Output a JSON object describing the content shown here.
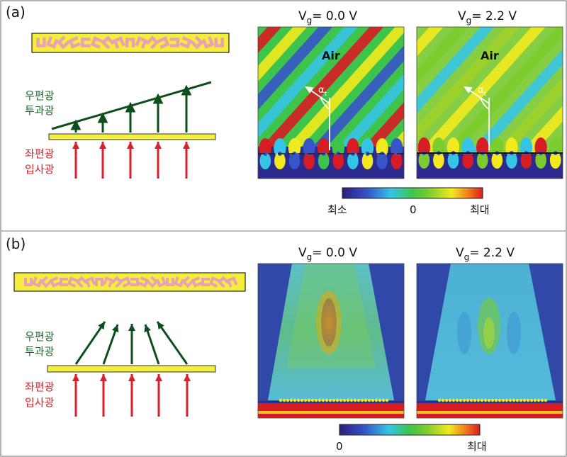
{
  "panels": [
    {
      "label": "(a)",
      "transmitted_label_line1": "우편광",
      "transmitted_label_line2": "투과광",
      "incident_label_line1": "좌편광",
      "incident_label_line2": "입사광",
      "maps": [
        {
          "title_prefix": "V",
          "title_sub": "g",
          "title_value": "= 0.0  V",
          "air_label": "Air",
          "angle_label": "α",
          "angle_sub": "t"
        },
        {
          "title_prefix": "V",
          "title_sub": "g",
          "title_value": "= 2.2  V",
          "air_label": "Air",
          "angle_label": "α",
          "angle_sub": "t"
        }
      ],
      "colorbar": {
        "min_label": "최소",
        "mid_label": "0",
        "max_label": "최대"
      }
    },
    {
      "label": "(b)",
      "transmitted_label_line1": "우편광",
      "transmitted_label_line2": "투과광",
      "incident_label_line1": "좌편광",
      "incident_label_line2": "입사광",
      "maps": [
        {
          "title_prefix": "V",
          "title_sub": "g",
          "title_value": "= 0.0  V"
        },
        {
          "title_prefix": "V",
          "title_sub": "g",
          "title_value": "= 2.2  V"
        }
      ],
      "colorbar": {
        "min_label": "0",
        "max_label": "최대"
      }
    }
  ],
  "colors": {
    "frame": "#9a9a9a",
    "metasurface_bar": "#f3ef3c",
    "unit_cell": "#e9a3b0",
    "transmitted_arrow": "#0d4f1c",
    "incident_arrow": "#d9202a",
    "transmitted_text": "#1b6a2a",
    "incident_text": "#d4202a"
  }
}
